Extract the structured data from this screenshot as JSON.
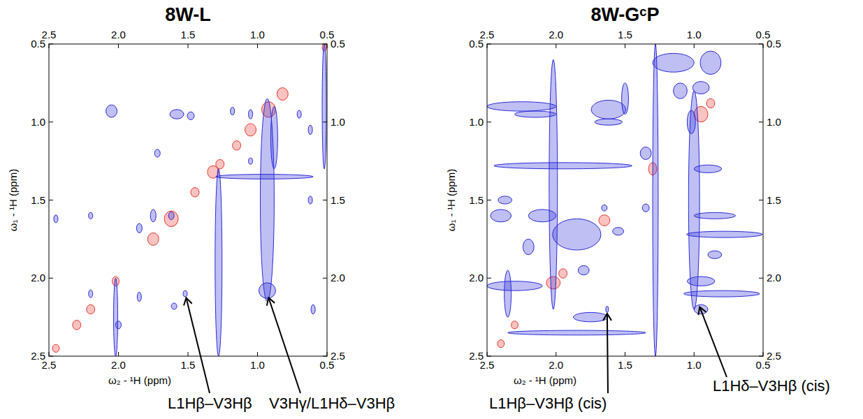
{
  "chart_data": [
    {
      "type": "contour",
      "title": "8W-L",
      "x_label": "ω₂ - ¹H  (ppm)",
      "y_label": "ω₁ - ¹H  (ppm)",
      "xlim": [
        2.5,
        0.5
      ],
      "ylim": [
        0.5,
        2.5
      ],
      "xticks": [
        2.5,
        {
          "value": 2,
          "label": "2.0"
        },
        1.5,
        {
          "value": 1,
          "label": "1.0"
        },
        0.5
      ],
      "yticks": [
        0.5,
        {
          "value": 1,
          "label": "1.0"
        },
        1.5,
        {
          "value": 2,
          "label": "2.0"
        },
        2.5
      ],
      "series": [
        {
          "color": "#e8382f",
          "x": [
            2.45,
            2.3,
            2.2,
            2.02,
            1.75,
            1.62,
            1.45,
            1.32,
            1.27,
            1.15,
            1.05,
            0.92,
            0.82,
            0.52
          ],
          "values": [
            2.45,
            2.3,
            2.2,
            2.02,
            1.75,
            1.62,
            1.45,
            1.32,
            1.27,
            1.15,
            1.05,
            0.92,
            0.82,
            0.52
          ],
          "dx": [
            0.05,
            0.06,
            0.06,
            0.05,
            0.08,
            0.1,
            0.06,
            0.08,
            0.06,
            0.06,
            0.08,
            0.1,
            0.08,
            0.03
          ],
          "dy": [
            0.05,
            0.06,
            0.06,
            0.06,
            0.08,
            0.1,
            0.06,
            0.08,
            0.06,
            0.06,
            0.08,
            0.1,
            0.08,
            0.05
          ]
        },
        {
          "color": "#2a2ad8",
          "x": [
            2.05,
            1.58,
            1.48,
            1.18,
            1.05,
            0.7,
            0.52,
            1.28,
            0.93,
            0.88,
            0.93,
            2.02,
            0.95,
            2.2,
            1.85,
            1.52,
            1.6,
            1.62,
            2.2,
            2.45,
            1.72,
            1.05,
            0.62,
            0.62,
            1.85,
            1.75,
            2.0,
            0.6
          ],
          "values": [
            0.93,
            0.95,
            0.96,
            0.93,
            0.95,
            0.95,
            0.9,
            1.9,
            1.5,
            1.1,
            2.08,
            2.25,
            1.35,
            2.1,
            2.12,
            2.1,
            2.18,
            1.6,
            1.6,
            1.62,
            1.2,
            1.25,
            1.05,
            1.5,
            1.68,
            1.6,
            2.3,
            2.2
          ],
          "dx": [
            0.08,
            0.1,
            0.05,
            0.03,
            0.03,
            0.03,
            0.03,
            0.05,
            0.1,
            0.05,
            0.12,
            0.03,
            0.7,
            0.03,
            0.03,
            0.03,
            0.04,
            0.04,
            0.03,
            0.03,
            0.04,
            0.03,
            0.03,
            0.03,
            0.04,
            0.04,
            0.04,
            0.03
          ],
          "dy": [
            0.08,
            0.06,
            0.05,
            0.05,
            0.06,
            0.05,
            0.8,
            1.2,
            1.3,
            0.4,
            0.1,
            0.5,
            0.03,
            0.05,
            0.06,
            0.04,
            0.04,
            0.05,
            0.04,
            0.05,
            0.05,
            0.04,
            0.06,
            0.05,
            0.06,
            0.08,
            0.05,
            0.06
          ]
        }
      ],
      "annotations": [
        {
          "text": "L1Hβ–V3Hβ",
          "x": 1.52,
          "y": 2.1
        },
        {
          "text": "V3Hγ/L1Hδ–V3Hβ",
          "x": 0.93,
          "y": 2.1
        }
      ]
    },
    {
      "type": "contour",
      "title": "8W-GᶜP",
      "x_label": "ω₂ - ¹H  (ppm)",
      "y_label": "ω₁ - ¹H  (ppm)",
      "xlim": [
        2.5,
        0.5
      ],
      "ylim": [
        0.5,
        2.5
      ],
      "xticks": [
        2.5,
        {
          "value": 2,
          "label": "2.0"
        },
        1.5,
        {
          "value": 1,
          "label": "1.0"
        },
        0.5
      ],
      "yticks": [
        0.5,
        {
          "value": 1,
          "label": "1.0"
        },
        1.5,
        {
          "value": 2,
          "label": "2.0"
        },
        2.5
      ],
      "series": [
        {
          "color": "#e8382f",
          "x": [
            2.4,
            2.3,
            2.02,
            1.95,
            1.65,
            1.3,
            0.95,
            0.88
          ],
          "values": [
            2.42,
            2.3,
            2.03,
            1.97,
            1.63,
            1.3,
            0.95,
            0.88
          ],
          "dx": [
            0.05,
            0.05,
            0.1,
            0.06,
            0.08,
            0.06,
            0.1,
            0.06
          ],
          "dy": [
            0.05,
            0.05,
            0.08,
            0.06,
            0.07,
            0.08,
            0.1,
            0.06
          ]
        },
        {
          "color": "#2a2ad8",
          "x": [
            2.25,
            2.15,
            1.62,
            1.62,
            1.95,
            2.4,
            2.37,
            0.78,
            0.85,
            0.8,
            0.95,
            2.3,
            1.75,
            1.85,
            0.9,
            1.28,
            1.0,
            1.02,
            2.02,
            2.35,
            1.5,
            0.95,
            1.63,
            1.85,
            2.1,
            1.15,
            0.88,
            0.95,
            1.1,
            1.55,
            1.35,
            1.65,
            2.2,
            1.8,
            0.85,
            1.35
          ],
          "values": [
            0.9,
            0.95,
            0.92,
            1.0,
            1.28,
            1.6,
            1.5,
            1.72,
            1.6,
            2.1,
            2.02,
            2.05,
            2.25,
            2.35,
            1.3,
            1.5,
            1.5,
            1.0,
            1.4,
            2.1,
            0.85,
            2.2,
            2.2,
            1.72,
            1.6,
            0.62,
            0.62,
            0.78,
            0.8,
            1.7,
            1.2,
            1.55,
            1.8,
            1.95,
            1.85,
            1.55
          ],
          "dx": [
            0.5,
            0.3,
            0.25,
            0.2,
            1.0,
            0.15,
            0.1,
            0.55,
            0.3,
            0.55,
            0.2,
            0.4,
            0.25,
            1.0,
            0.2,
            0.04,
            0.08,
            0.06,
            0.06,
            0.05,
            0.05,
            0.1,
            0.02,
            0.35,
            0.2,
            0.3,
            0.15,
            0.12,
            0.1,
            0.08,
            0.08,
            0.04,
            0.08,
            0.08,
            0.1,
            0.05
          ],
          "dy": [
            0.06,
            0.04,
            0.12,
            0.04,
            0.04,
            0.08,
            0.05,
            0.04,
            0.04,
            0.04,
            0.06,
            0.06,
            0.06,
            0.03,
            0.05,
            2.0,
            1.4,
            0.15,
            1.6,
            0.3,
            0.2,
            0.06,
            0.04,
            0.2,
            0.08,
            0.12,
            0.15,
            0.08,
            0.1,
            0.05,
            0.08,
            0.04,
            0.1,
            0.06,
            0.05,
            0.05
          ]
        }
      ],
      "annotations": [
        {
          "text": "L1Hβ–V3Hβ (cis)",
          "x": 1.63,
          "y": 2.2
        },
        {
          "text": "L1Hδ–V3Hβ (cis)",
          "x": 0.97,
          "y": 2.16
        }
      ]
    }
  ]
}
